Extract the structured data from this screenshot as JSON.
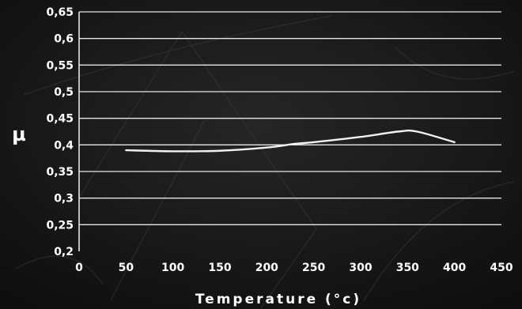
{
  "chart_data": {
    "type": "line",
    "title": "",
    "xlabel": "Temperature (°c)",
    "ylabel": "µ",
    "xlim": [
      0,
      450
    ],
    "ylim": [
      0.2,
      0.65
    ],
    "x_ticks": [
      0,
      50,
      100,
      150,
      200,
      250,
      300,
      350,
      400,
      450
    ],
    "x_tick_labels": [
      "0",
      "50",
      "100",
      "150",
      "200",
      "250",
      "300",
      "350",
      "400",
      "450"
    ],
    "y_ticks": [
      0.2,
      0.25,
      0.3,
      0.35,
      0.4,
      0.45,
      0.5,
      0.55,
      0.6,
      0.65
    ],
    "y_tick_labels": [
      "0,2",
      "0,25",
      "0,3",
      "0,35",
      "0,4",
      "0,45",
      "0,5",
      "0,55",
      "0,6",
      "0,65"
    ],
    "grid": "horizontal",
    "legend": "none",
    "colors": {
      "background": "#141414",
      "line": "#f2f2f2",
      "grid": "#e6e6e6",
      "text": "#ffffff"
    },
    "series": [
      {
        "x": [
          50,
          100,
          150,
          200,
          230,
          250,
          300,
          340,
          360,
          400
        ],
        "y": [
          0.39,
          0.388,
          0.389,
          0.395,
          0.402,
          0.405,
          0.415,
          0.425,
          0.425,
          0.405
        ]
      }
    ]
  }
}
